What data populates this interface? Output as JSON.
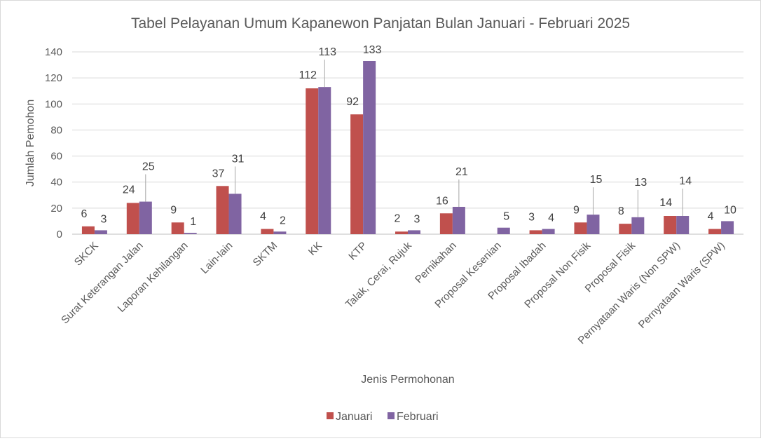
{
  "chart_data": {
    "type": "bar",
    "title": "Tabel Pelayanan Umum Kapanewon Panjatan Bulan Januari - Februari 2025",
    "xlabel": "Jenis Permohonan",
    "ylabel": "Jumlah Pemohon",
    "ylim": [
      0,
      140
    ],
    "yticks": [
      0,
      20,
      40,
      60,
      80,
      100,
      120,
      140
    ],
    "grid": true,
    "legend_position": "bottom",
    "categories": [
      "SKCK",
      "Surat Keterangan Jalan",
      "Laporan Kehilangan",
      "Lain-lain",
      "SKTM",
      "KK",
      "KTP",
      "Talak, Cerai, Rujuk",
      "Pernikahan",
      "Proposal Kesenian",
      "Proposal Ibadah",
      "Proposal Non Fisik",
      "Proposal Fisik",
      "Pernyataan Waris (Non SPW)",
      "Pernyataan Waris (SPW)"
    ],
    "series": [
      {
        "name": "Januari",
        "color": "#c0504d",
        "values": [
          6,
          24,
          9,
          37,
          4,
          112,
          92,
          2,
          16,
          null,
          3,
          9,
          8,
          14,
          4
        ]
      },
      {
        "name": "Februari",
        "color": "#8064a2",
        "values": [
          3,
          25,
          1,
          31,
          2,
          113,
          133,
          3,
          21,
          5,
          4,
          15,
          13,
          14,
          10
        ]
      }
    ]
  }
}
